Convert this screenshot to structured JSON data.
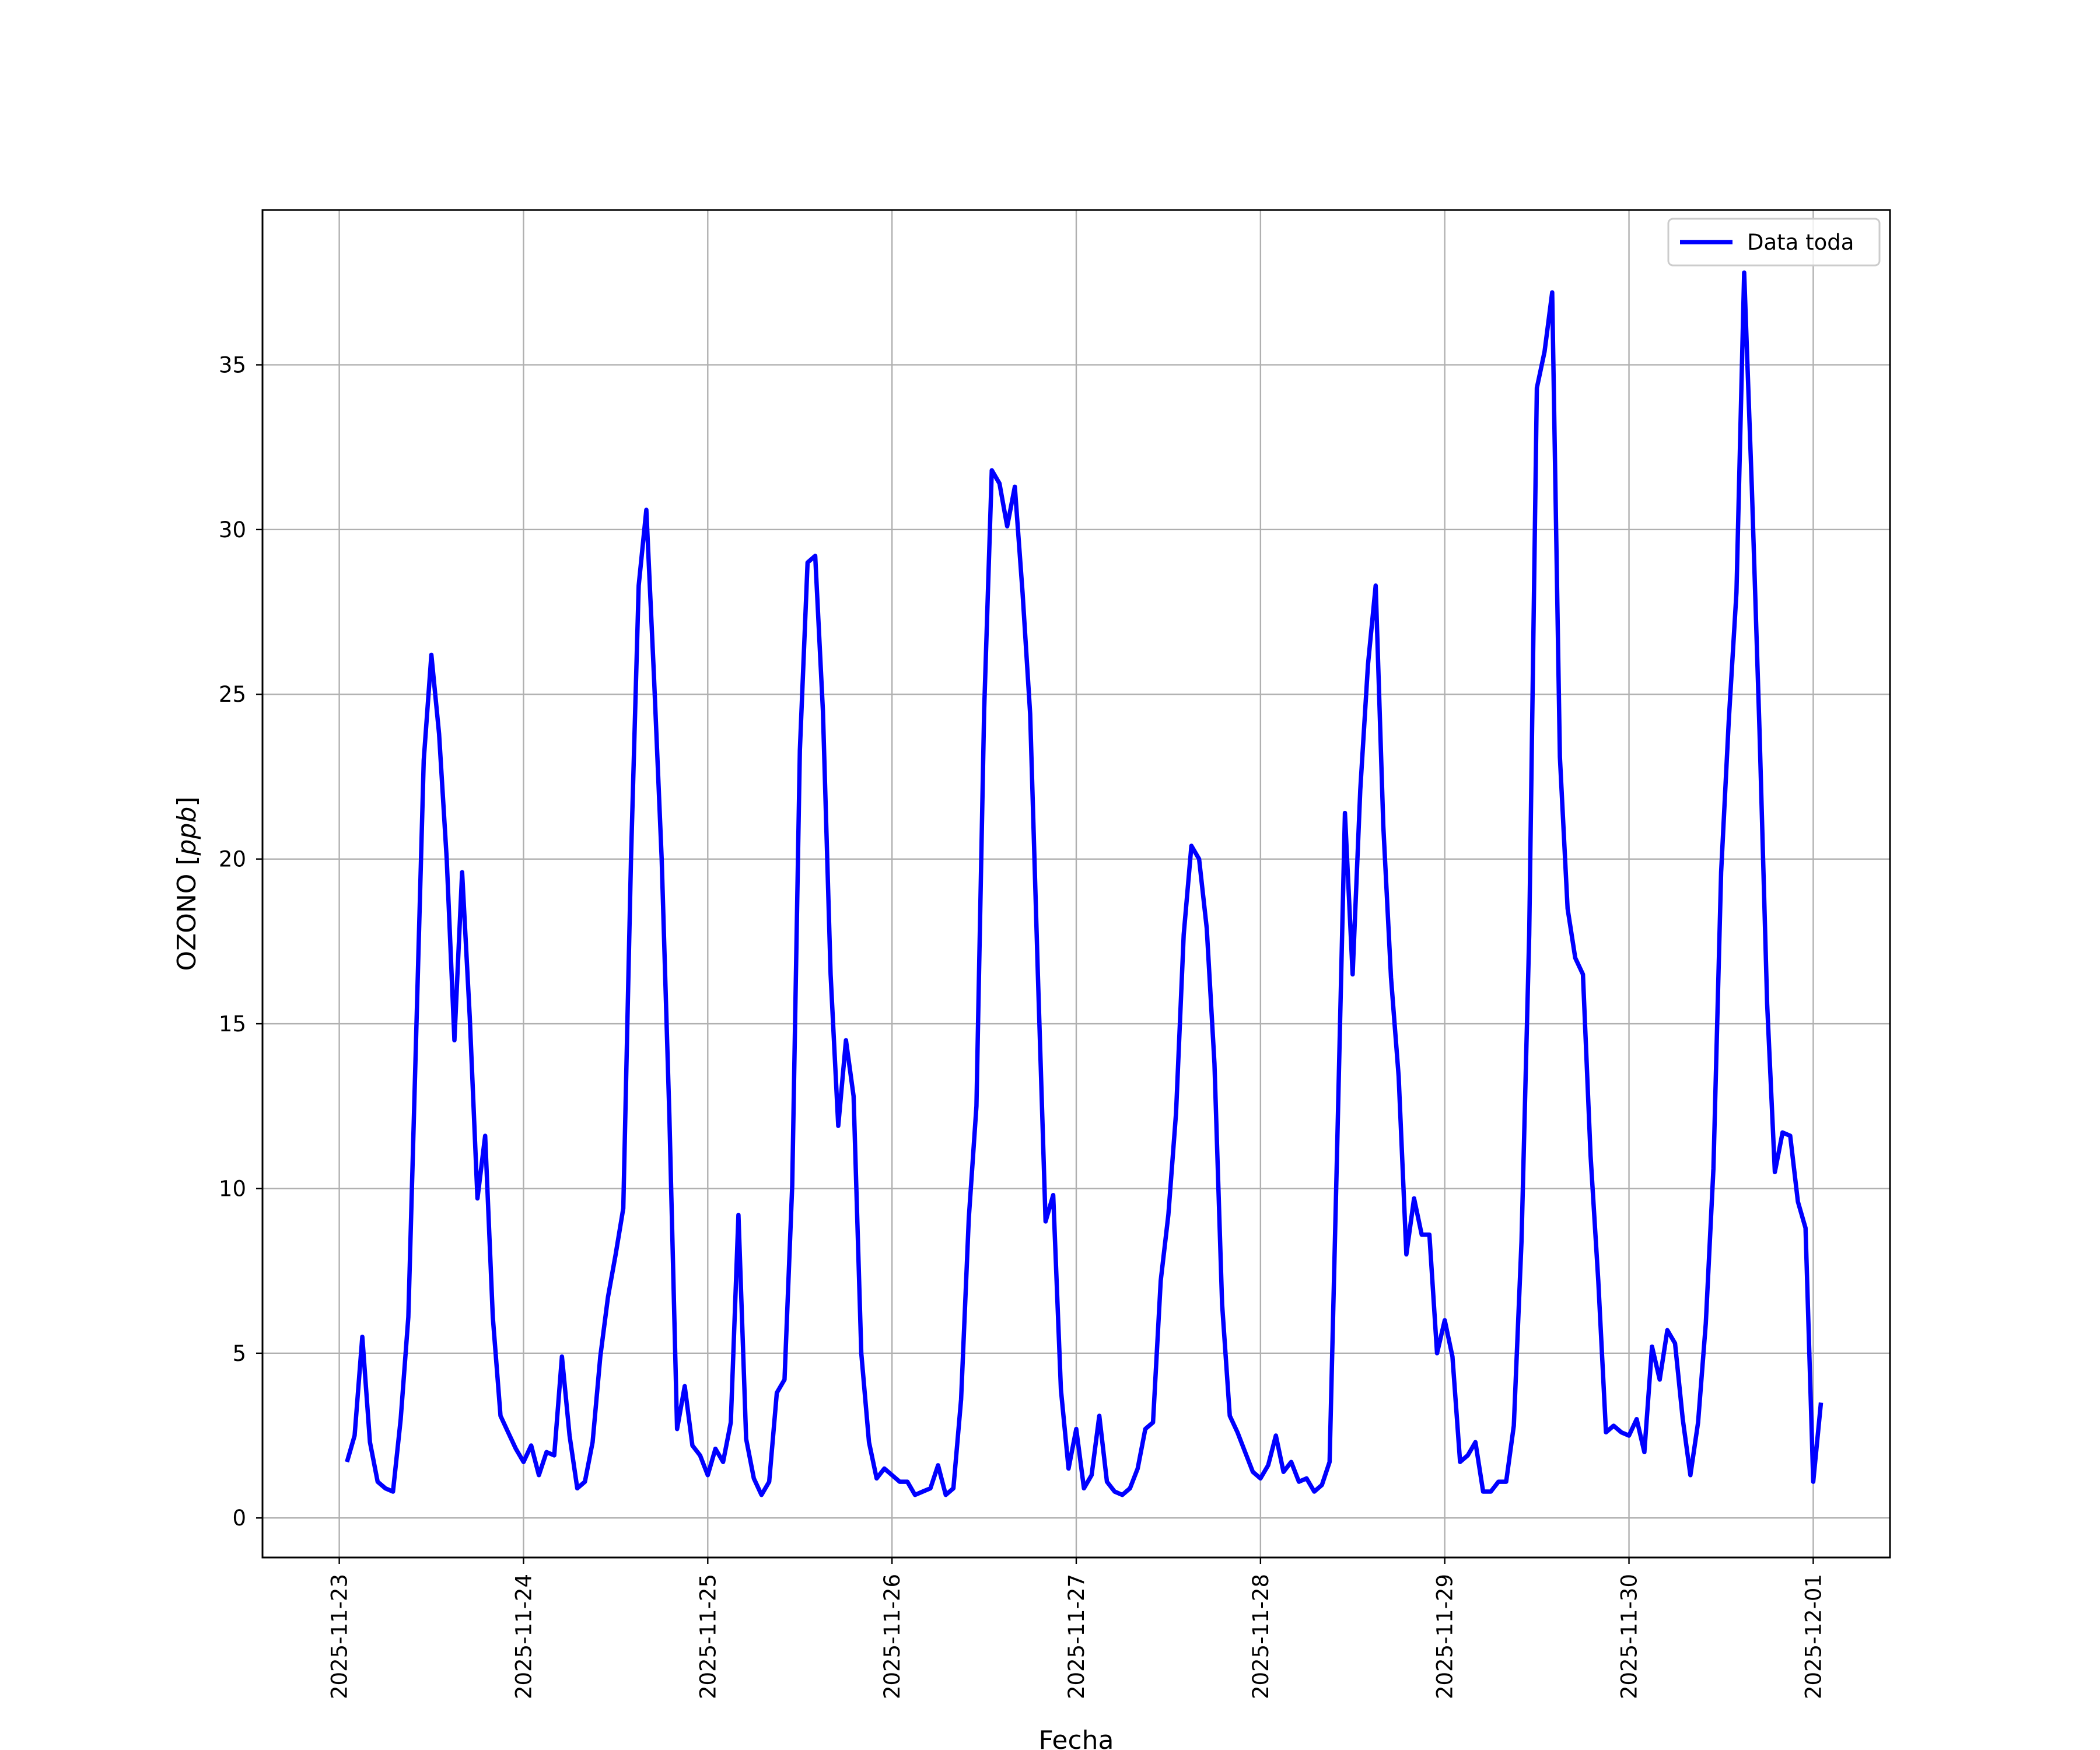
{
  "chart_data": {
    "type": "line",
    "title": "",
    "xlabel": "Fecha",
    "ylabel": "OZONO [ppb]",
    "ylabel_unit_prefix": "OZONO [",
    "ylabel_unit_math": "ppb",
    "ylabel_unit_suffix": "]",
    "x_start": "2025-11-23T01:00",
    "x_interval_hours": 1,
    "xlim": [
      "2025-11-22T14:00",
      "2025-12-01T10:00"
    ],
    "ylim": [
      -1.2,
      39.7
    ],
    "x_ticks": [
      "2025-11-23",
      "2025-11-24",
      "2025-11-25",
      "2025-11-26",
      "2025-11-27",
      "2025-11-28",
      "2025-11-29",
      "2025-11-30",
      "2025-12-01"
    ],
    "y_ticks": [
      0,
      5,
      10,
      15,
      20,
      25,
      30,
      35
    ],
    "grid": true,
    "legend_position": "top-right",
    "series": [
      {
        "name": "Data toda",
        "color": "#0000ff",
        "values": [
          1.7,
          2.5,
          5.5,
          2.3,
          1.1,
          0.9,
          0.8,
          3.0,
          6.1,
          14.5,
          23.0,
          26.2,
          23.8,
          20.0,
          14.5,
          19.6,
          15.2,
          9.7,
          11.6,
          6.1,
          3.1,
          2.6,
          2.1,
          1.7,
          2.2,
          1.3,
          2.0,
          1.9,
          4.9,
          2.5,
          0.9,
          1.1,
          2.3,
          4.9,
          6.7,
          8.0,
          9.4,
          20.0,
          28.3,
          30.6,
          25.5,
          20.0,
          12.2,
          2.7,
          4.0,
          2.2,
          1.9,
          1.3,
          2.1,
          1.7,
          2.9,
          9.2,
          2.4,
          1.2,
          0.7,
          1.1,
          3.8,
          4.2,
          10.1,
          23.3,
          29.0,
          29.2,
          24.5,
          16.5,
          11.9,
          14.5,
          12.8,
          5.0,
          2.3,
          1.2,
          1.5,
          1.3,
          1.1,
          1.1,
          0.7,
          0.8,
          0.9,
          1.6,
          0.7,
          0.9,
          3.6,
          9.1,
          12.5,
          24.5,
          31.8,
          31.4,
          30.1,
          31.3,
          28.1,
          24.4,
          16.5,
          9.0,
          9.8,
          3.9,
          1.5,
          2.7,
          0.9,
          1.3,
          3.1,
          1.1,
          0.8,
          0.7,
          0.9,
          1.5,
          2.7,
          2.9,
          7.2,
          9.2,
          12.3,
          17.7,
          20.4,
          20.0,
          17.9,
          13.8,
          6.5,
          3.1,
          2.6,
          2.0,
          1.4,
          1.2,
          1.6,
          2.5,
          1.4,
          1.7,
          1.1,
          1.2,
          0.8,
          1.0,
          1.7,
          11.4,
          21.4,
          16.5,
          22.1,
          25.9,
          28.3,
          21.0,
          16.4,
          13.4,
          8.0,
          9.7,
          8.6,
          8.6,
          5.0,
          6.0,
          4.9,
          1.7,
          1.9,
          2.3,
          0.8,
          0.8,
          1.1,
          1.1,
          2.8,
          8.4,
          17.7,
          34.3,
          35.4,
          37.2,
          23.1,
          18.5,
          17.0,
          16.5,
          11.0,
          7.2,
          2.6,
          2.8,
          2.6,
          2.5,
          3.0,
          2.0,
          5.2,
          4.2,
          5.7,
          5.3,
          3.0,
          1.3,
          2.9,
          5.9,
          10.6,
          19.6,
          24.2,
          28.1,
          37.8,
          31.3,
          23.9,
          15.6,
          10.5,
          11.7,
          11.6,
          9.6,
          8.8,
          1.1,
          3.5
        ]
      }
    ]
  }
}
